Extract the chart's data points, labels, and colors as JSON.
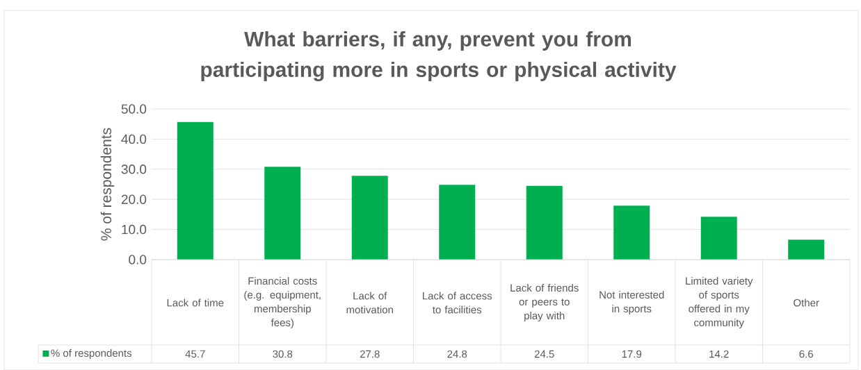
{
  "chart_data": {
    "type": "bar",
    "title": "What barriers, if any, prevent you from participating more in sports or physical activity",
    "ylabel": "% of respondents",
    "categories": [
      "Lack of time",
      "Financial costs (e.g. equipment, membership fees)",
      "Lack of motivation",
      "Lack of access to facilities",
      "Lack of friends or peers to play with",
      "Not interested in sports",
      "Limited variety of sports offered in my community",
      "Other"
    ],
    "series": [
      {
        "name": "% of respondents",
        "color": "#00b050",
        "values": [
          45.7,
          30.8,
          27.8,
          24.8,
          24.5,
          17.9,
          14.2,
          6.6
        ]
      }
    ],
    "ylim": [
      0,
      50
    ],
    "yticks": [
      {
        "value": 0,
        "label": "0.0"
      },
      {
        "value": 10,
        "label": "10.0"
      },
      {
        "value": 20,
        "label": "20.0"
      },
      {
        "value": 30,
        "label": "30.0"
      },
      {
        "value": 40,
        "label": "40.0"
      },
      {
        "value": 50,
        "label": "50.0"
      }
    ],
    "grid": "y",
    "legend": "bottom",
    "data_labels": true
  }
}
